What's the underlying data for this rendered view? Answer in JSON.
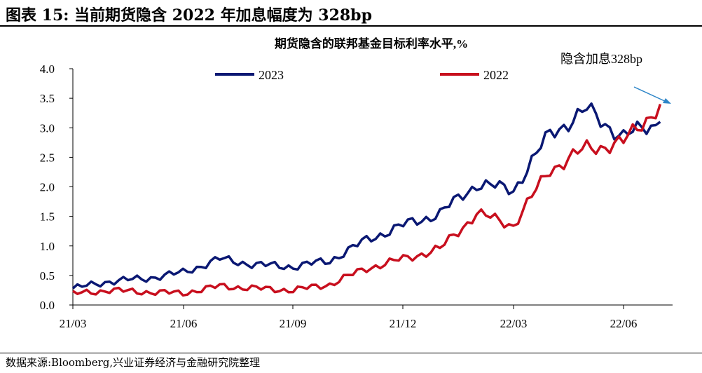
{
  "page_title": "图表 15: 当前期货隐含 2022 年加息幅度为 328bp",
  "source_note": "数据来源:Bloomberg,兴业证券经济与金融研究院整理",
  "colors": {
    "series_2023": "#0a1873",
    "series_2022": "#c80f1e",
    "annotation": "#2e86c8"
  },
  "chart_data": {
    "type": "line",
    "title": "期货隐含的联邦基金目标利率水平,%",
    "ylim": [
      0,
      4
    ],
    "yticks": [
      "0.0",
      "0.5",
      "1.0",
      "1.5",
      "2.0",
      "2.5",
      "3.0",
      "3.5",
      "4.0"
    ],
    "xticks": [
      "21/03",
      "21/06",
      "21/09",
      "21/12",
      "22/03",
      "22/06"
    ],
    "xlabel": "",
    "ylabel": "",
    "grid": false,
    "legend": "top",
    "annotation": {
      "text": "隐含加息328bp"
    },
    "x": [
      "21/03",
      "21/04",
      "21/05",
      "21/06",
      "21/07",
      "21/08",
      "21/09",
      "21/10",
      "21/11",
      "21/12",
      "22/01",
      "22/02",
      "22/03",
      "22/04",
      "22/05",
      "22/06",
      "22/07"
    ],
    "series": [
      {
        "name": "2023",
        "color": "#0a1873",
        "values": [
          0.28,
          0.4,
          0.45,
          0.55,
          0.78,
          0.68,
          0.65,
          0.75,
          1.1,
          1.35,
          1.55,
          2.05,
          1.95,
          2.9,
          3.3,
          2.85,
          3.1
        ]
      },
      {
        "name": "2022",
        "color": "#c80f1e",
        "values": [
          0.19,
          0.25,
          0.22,
          0.2,
          0.32,
          0.28,
          0.25,
          0.35,
          0.62,
          0.78,
          0.95,
          1.55,
          1.35,
          2.3,
          2.65,
          2.75,
          3.4
        ]
      }
    ]
  }
}
